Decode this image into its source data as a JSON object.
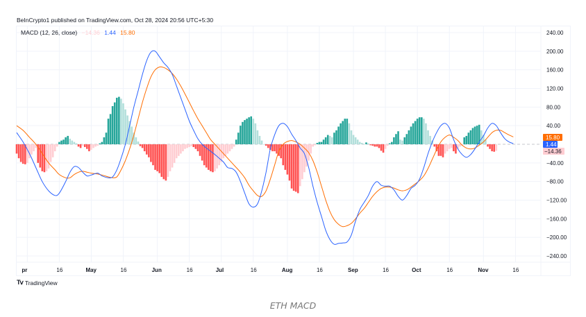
{
  "header": {
    "published_text": "BeInCrypto1 published on TradingView.com, Oct 28, 2024 20:56 UTC+5:30"
  },
  "legend": {
    "indicator": "MACD (12, 26, close)",
    "histogram_value": "−14.36",
    "macd_value": "1.44",
    "signal_value": "15.80"
  },
  "colors": {
    "macd": "#2962ff",
    "signal": "#ff6d00",
    "hist_pos_rising": "#26a69a",
    "hist_pos_falling": "#b2dfdb",
    "hist_neg_falling": "#ff5252",
    "hist_neg_rising": "#ffcdd2",
    "grid": "#f0f3fa"
  },
  "footer": {
    "brand": "TradingView",
    "caption": "ETH MACD"
  },
  "chart_data": {
    "type": "line",
    "title": "MACD (12, 26, close)",
    "xlabel": "",
    "ylabel": "",
    "ylim": [
      -260,
      260
    ],
    "grid": true,
    "legend_position": "top-left",
    "y_ticks": [
      "240.00",
      "200.00",
      "160.00",
      "120.00",
      "80.00",
      "40.00",
      "−40.00",
      "−80.00",
      "−120.00",
      "−160.00",
      "−200.00",
      "−240.00"
    ],
    "y_tick_values": [
      240,
      200,
      160,
      120,
      80,
      40,
      -40,
      -80,
      -120,
      -160,
      -200,
      -240
    ],
    "x_ticks": [
      {
        "label": "pr",
        "day": 5,
        "month": true
      },
      {
        "label": "16",
        "day": 20,
        "month": false
      },
      {
        "label": "May",
        "day": 35,
        "month": true
      },
      {
        "label": "16",
        "day": 50,
        "month": false
      },
      {
        "label": "Jun",
        "day": 66,
        "month": true
      },
      {
        "label": "16",
        "day": 81,
        "month": false
      },
      {
        "label": "Jul",
        "day": 96,
        "month": true
      },
      {
        "label": "16",
        "day": 111,
        "month": false
      },
      {
        "label": "Aug",
        "day": 127,
        "month": true
      },
      {
        "label": "16",
        "day": 142,
        "month": false
      },
      {
        "label": "Sep",
        "day": 158,
        "month": true
      },
      {
        "label": "16",
        "day": 173,
        "month": false
      },
      {
        "label": "Oct",
        "day": 188,
        "month": true
      },
      {
        "label": "16",
        "day": 203,
        "month": false
      },
      {
        "label": "Nov",
        "day": 219,
        "month": true
      },
      {
        "label": "16",
        "day": 234,
        "month": false
      }
    ],
    "x_range_days": [
      0,
      246
    ],
    "last_values": {
      "signal": "15.80",
      "macd": "1.44",
      "histogram": "−14.36"
    },
    "series": [
      {
        "name": "MACD",
        "points": [
          [
            0,
            25
          ],
          [
            3,
            5
          ],
          [
            6,
            -20
          ],
          [
            9,
            -50
          ],
          [
            12,
            -80
          ],
          [
            15,
            -100
          ],
          [
            18,
            -110
          ],
          [
            20,
            -105
          ],
          [
            23,
            -80
          ],
          [
            25,
            -60
          ],
          [
            27,
            -48
          ],
          [
            29,
            -50
          ],
          [
            31,
            -60
          ],
          [
            33,
            -68
          ],
          [
            35,
            -66
          ],
          [
            38,
            -62
          ],
          [
            40,
            -68
          ],
          [
            43,
            -72
          ],
          [
            45,
            -70
          ],
          [
            47,
            -55
          ],
          [
            49,
            -30
          ],
          [
            51,
            0
          ],
          [
            53,
            40
          ],
          [
            55,
            80
          ],
          [
            57,
            115
          ],
          [
            59,
            150
          ],
          [
            61,
            180
          ],
          [
            63,
            198
          ],
          [
            65,
            200
          ],
          [
            67,
            188
          ],
          [
            69,
            175
          ],
          [
            71,
            165
          ],
          [
            73,
            150
          ],
          [
            75,
            125
          ],
          [
            77,
            100
          ],
          [
            79,
            75
          ],
          [
            81,
            50
          ],
          [
            83,
            30
          ],
          [
            85,
            12
          ],
          [
            87,
            0
          ],
          [
            89,
            -8
          ],
          [
            91,
            -15
          ],
          [
            93,
            -22
          ],
          [
            95,
            -30
          ],
          [
            97,
            -38
          ],
          [
            99,
            -50
          ],
          [
            101,
            -52
          ],
          [
            103,
            -60
          ],
          [
            105,
            -80
          ],
          [
            107,
            -105
          ],
          [
            109,
            -128
          ],
          [
            111,
            -135
          ],
          [
            113,
            -128
          ],
          [
            115,
            -100
          ],
          [
            117,
            -60
          ],
          [
            119,
            -10
          ],
          [
            121,
            20
          ],
          [
            123,
            40
          ],
          [
            125,
            45
          ],
          [
            127,
            38
          ],
          [
            129,
            22
          ],
          [
            131,
            8
          ],
          [
            133,
            -8
          ],
          [
            135,
            -20
          ],
          [
            137,
            -50
          ],
          [
            139,
            -90
          ],
          [
            141,
            -125
          ],
          [
            143,
            -155
          ],
          [
            145,
            -185
          ],
          [
            147,
            -205
          ],
          [
            149,
            -215
          ],
          [
            151,
            -213
          ],
          [
            153,
            -212
          ],
          [
            155,
            -210
          ],
          [
            157,
            -195
          ],
          [
            159,
            -165
          ],
          [
            161,
            -140
          ],
          [
            163,
            -125
          ],
          [
            165,
            -110
          ],
          [
            167,
            -90
          ],
          [
            169,
            -80
          ],
          [
            171,
            -88
          ],
          [
            173,
            -90
          ],
          [
            175,
            -90
          ],
          [
            177,
            -98
          ],
          [
            179,
            -112
          ],
          [
            181,
            -120
          ],
          [
            183,
            -110
          ],
          [
            185,
            -95
          ],
          [
            187,
            -88
          ],
          [
            189,
            -75
          ],
          [
            191,
            -50
          ],
          [
            193,
            -20
          ],
          [
            195,
            5
          ],
          [
            197,
            25
          ],
          [
            199,
            40
          ],
          [
            201,
            45
          ],
          [
            203,
            35
          ],
          [
            205,
            10
          ],
          [
            207,
            -10
          ],
          [
            209,
            -22
          ],
          [
            211,
            -28
          ],
          [
            213,
            -22
          ],
          [
            215,
            -10
          ],
          [
            217,
            5
          ],
          [
            219,
            18
          ],
          [
            221,
            35
          ],
          [
            223,
            45
          ],
          [
            225,
            40
          ],
          [
            227,
            25
          ],
          [
            229,
            12
          ],
          [
            231,
            5
          ],
          [
            233,
            1.44
          ]
        ]
      },
      {
        "name": "Signal",
        "points": [
          [
            0,
            40
          ],
          [
            3,
            30
          ],
          [
            6,
            15
          ],
          [
            9,
            0
          ],
          [
            12,
            -20
          ],
          [
            15,
            -40
          ],
          [
            18,
            -55
          ],
          [
            20,
            -65
          ],
          [
            23,
            -72
          ],
          [
            25,
            -72
          ],
          [
            27,
            -65
          ],
          [
            29,
            -60
          ],
          [
            31,
            -58
          ],
          [
            33,
            -60
          ],
          [
            35,
            -62
          ],
          [
            38,
            -64
          ],
          [
            40,
            -66
          ],
          [
            43,
            -70
          ],
          [
            45,
            -72
          ],
          [
            47,
            -70
          ],
          [
            49,
            -55
          ],
          [
            51,
            -35
          ],
          [
            53,
            -10
          ],
          [
            55,
            20
          ],
          [
            57,
            55
          ],
          [
            59,
            90
          ],
          [
            61,
            120
          ],
          [
            63,
            145
          ],
          [
            65,
            160
          ],
          [
            67,
            166
          ],
          [
            69,
            165
          ],
          [
            71,
            160
          ],
          [
            73,
            152
          ],
          [
            75,
            140
          ],
          [
            77,
            125
          ],
          [
            79,
            108
          ],
          [
            81,
            90
          ],
          [
            83,
            72
          ],
          [
            85,
            55
          ],
          [
            87,
            40
          ],
          [
            89,
            25
          ],
          [
            91,
            10
          ],
          [
            93,
            0
          ],
          [
            95,
            -10
          ],
          [
            97,
            -20
          ],
          [
            99,
            -30
          ],
          [
            101,
            -40
          ],
          [
            103,
            -50
          ],
          [
            105,
            -60
          ],
          [
            107,
            -72
          ],
          [
            109,
            -88
          ],
          [
            111,
            -100
          ],
          [
            113,
            -110
          ],
          [
            115,
            -112
          ],
          [
            117,
            -100
          ],
          [
            119,
            -75
          ],
          [
            121,
            -45
          ],
          [
            123,
            -15
          ],
          [
            125,
            0
          ],
          [
            127,
            6
          ],
          [
            129,
            8
          ],
          [
            131,
            5
          ],
          [
            133,
            0
          ],
          [
            135,
            -8
          ],
          [
            137,
            -18
          ],
          [
            139,
            -35
          ],
          [
            141,
            -60
          ],
          [
            143,
            -90
          ],
          [
            145,
            -120
          ],
          [
            147,
            -145
          ],
          [
            149,
            -162
          ],
          [
            151,
            -172
          ],
          [
            153,
            -177
          ],
          [
            155,
            -175
          ],
          [
            157,
            -170
          ],
          [
            159,
            -160
          ],
          [
            161,
            -148
          ],
          [
            163,
            -138
          ],
          [
            165,
            -125
          ],
          [
            167,
            -112
          ],
          [
            169,
            -102
          ],
          [
            171,
            -95
          ],
          [
            173,
            -92
          ],
          [
            175,
            -92
          ],
          [
            177,
            -94
          ],
          [
            179,
            -98
          ],
          [
            181,
            -100
          ],
          [
            183,
            -98
          ],
          [
            185,
            -92
          ],
          [
            187,
            -85
          ],
          [
            189,
            -78
          ],
          [
            191,
            -68
          ],
          [
            193,
            -52
          ],
          [
            195,
            -32
          ],
          [
            197,
            -12
          ],
          [
            199,
            5
          ],
          [
            201,
            15
          ],
          [
            203,
            20
          ],
          [
            205,
            15
          ],
          [
            207,
            8
          ],
          [
            209,
            -2
          ],
          [
            211,
            -8
          ],
          [
            213,
            -10
          ],
          [
            215,
            -8
          ],
          [
            217,
            -2
          ],
          [
            219,
            5
          ],
          [
            221,
            15
          ],
          [
            223,
            25
          ],
          [
            225,
            30
          ],
          [
            227,
            30
          ],
          [
            229,
            25
          ],
          [
            231,
            20
          ],
          [
            233,
            15.8
          ]
        ]
      },
      {
        "name": "Histogram",
        "type": "bar",
        "values": [
          -20,
          -30,
          -38,
          -42,
          -43,
          -40,
          -30,
          -22,
          -15,
          -8,
          -40,
          -50,
          -58,
          -60,
          -58,
          -52,
          -38,
          -28,
          -15,
          -5,
          5,
          8,
          10,
          15,
          18,
          12,
          8,
          5,
          2,
          -5,
          -8,
          -3,
          -6,
          -10,
          -15,
          -12,
          -8,
          -5,
          -3,
          2,
          5,
          15,
          25,
          55,
          65,
          82,
          90,
          100,
          102,
          98,
          88,
          75,
          62,
          50,
          38,
          25,
          15,
          6,
          -4,
          -8,
          -15,
          -22,
          -28,
          -38,
          -45,
          -55,
          -58,
          -62,
          -70,
          -75,
          -78,
          -70,
          -58,
          -50,
          -40,
          -30,
          -25,
          -20,
          -15,
          -10,
          -8,
          -6,
          -4,
          -6,
          -10,
          -15,
          -25,
          -35,
          -45,
          -50,
          -55,
          -58,
          -60,
          -58,
          -52,
          -45,
          -38,
          -30,
          -25,
          -20,
          -15,
          -10,
          -5,
          10,
          25,
          40,
          48,
          52,
          55,
          58,
          60,
          55,
          45,
          30,
          18,
          8,
          0,
          -3,
          -8,
          -12,
          -15,
          -15,
          -20,
          -25,
          -30,
          -45,
          -55,
          -65,
          -78,
          -95,
          -100,
          -102,
          -105,
          -90,
          -75,
          -60,
          -48,
          -35,
          -20,
          -5,
          -2,
          3,
          5,
          5,
          10,
          15,
          20,
          18,
          15,
          25,
          30,
          38,
          45,
          50,
          55,
          55,
          45,
          30,
          20,
          15,
          10,
          5,
          3,
          1,
          4,
          2,
          -2,
          -3,
          -5,
          -5,
          -8,
          -14,
          -18,
          -10,
          -3,
          2,
          5,
          15,
          22,
          28,
          10,
          8,
          15,
          22,
          30,
          38,
          45,
          50,
          55,
          58,
          58,
          55,
          45,
          30,
          18,
          8,
          -5,
          -15,
          -25,
          -25,
          -28,
          -20,
          -15,
          -10,
          -8,
          -15,
          -20,
          -10,
          -5,
          -3,
          15,
          18,
          25,
          30,
          35,
          38,
          40,
          42,
          30,
          20,
          10,
          -5,
          -10,
          -15,
          -16,
          -14
        ]
      }
    ]
  }
}
